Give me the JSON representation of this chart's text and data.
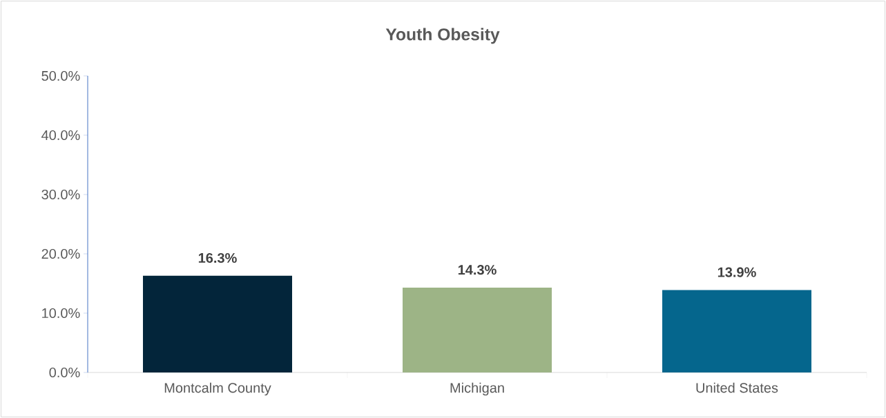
{
  "chart_data": {
    "type": "bar",
    "title": "**Youth Obesity**",
    "categories": [
      "Montcalm County",
      "Michigan",
      "United States"
    ],
    "values": [
      16.3,
      14.3,
      13.9
    ],
    "colors": [
      "#03253a",
      "#9db486",
      "#05668d"
    ],
    "value_labels": [
      "**16.3%**",
      "**14.3%**",
      "**13.9%**"
    ],
    "ylim": [
      0,
      50
    ],
    "yticks": [
      {
        "value": 0,
        "label": "0.0%"
      },
      {
        "value": 10,
        "label": "10.0%"
      },
      {
        "value": 20,
        "label": "20.0%"
      },
      {
        "value": 30,
        "label": "30.0%"
      },
      {
        "value": 40,
        "label": "40.0%"
      },
      {
        "value": 50,
        "label": "50.0%"
      }
    ]
  }
}
